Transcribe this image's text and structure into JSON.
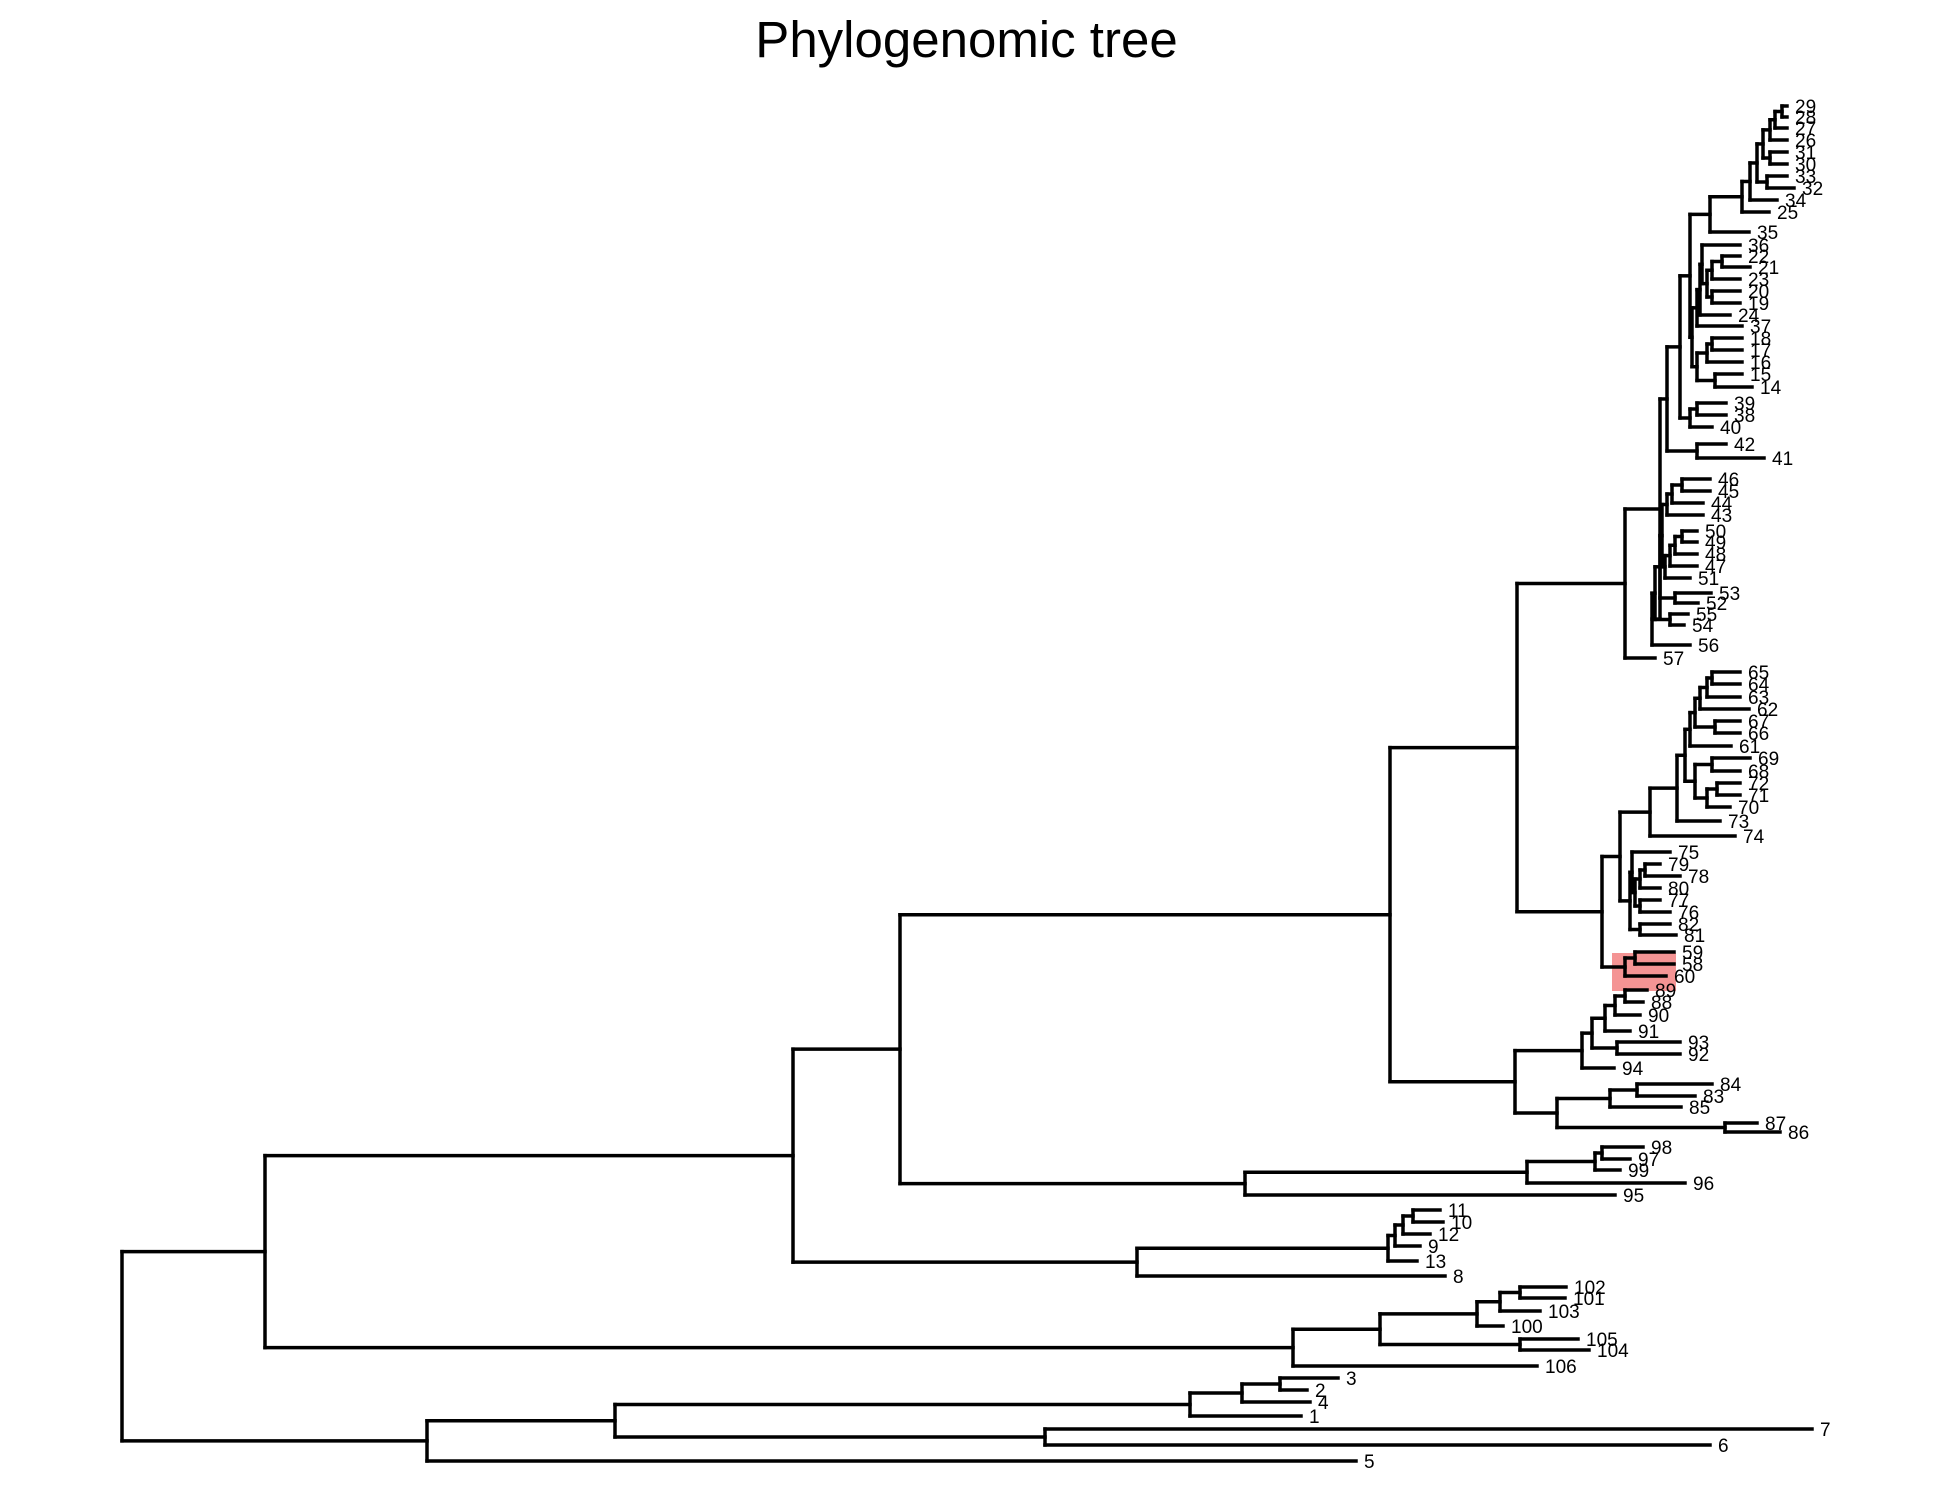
{
  "title": "Phylogenomic tree",
  "colors": {
    "branch": "#000000",
    "highlight": "#f07070"
  },
  "highlighted_clade": [
    "59",
    "58",
    "60"
  ],
  "tip_labels": [
    "29",
    "28",
    "27",
    "26",
    "31",
    "30",
    "33",
    "32",
    "34",
    "25",
    "35",
    "36",
    "22",
    "21",
    "23",
    "20",
    "19",
    "24",
    "37",
    "18",
    "17",
    "16",
    "15",
    "14",
    "39",
    "38",
    "40",
    "42",
    "41",
    "46",
    "45",
    "44",
    "43",
    "50",
    "49",
    "48",
    "47",
    "51",
    "53",
    "52",
    "55",
    "54",
    "56",
    "57",
    "65",
    "64",
    "63",
    "62",
    "67",
    "66",
    "61",
    "69",
    "68",
    "72",
    "71",
    "70",
    "73",
    "74",
    "75",
    "79",
    "78",
    "80",
    "77",
    "76",
    "82",
    "81",
    "59",
    "58",
    "60",
    "89",
    "88",
    "90",
    "91",
    "93",
    "92",
    "94",
    "84",
    "83",
    "85",
    "87",
    "86",
    "98",
    "97",
    "99",
    "96",
    "95",
    "11",
    "10",
    "12",
    "9",
    "13",
    "8",
    "102",
    "101",
    "103",
    "100",
    "105",
    "104",
    "106",
    "3",
    "2",
    "4",
    "1",
    "7",
    "6",
    "5"
  ]
}
